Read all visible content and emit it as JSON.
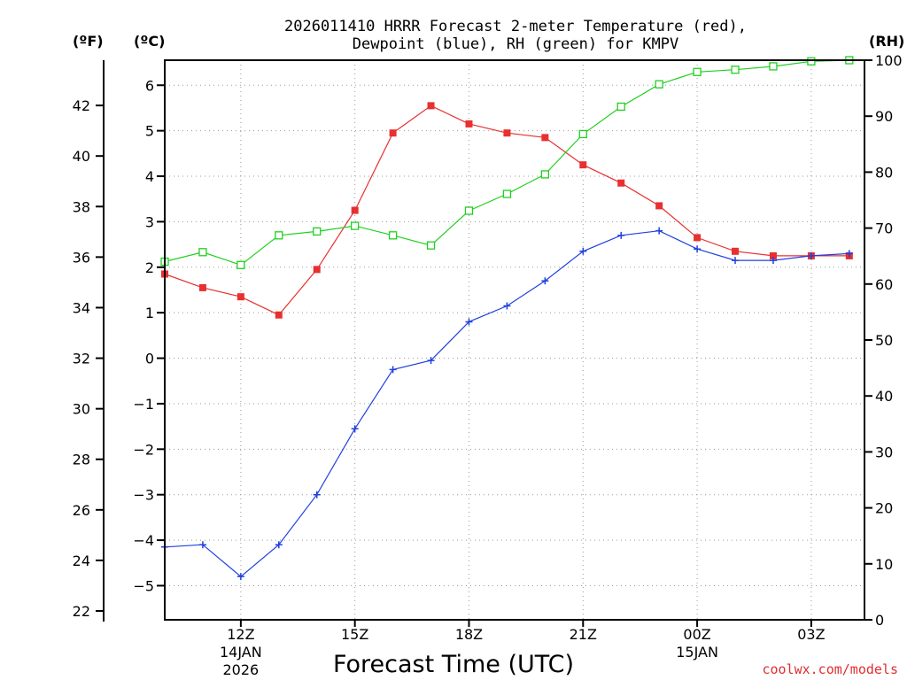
{
  "chart_data": {
    "type": "line",
    "title_line1": "2026011410 HRRR Forecast 2-meter Temperature (red),",
    "title_line2": "Dewpoint (blue), RH (green) for KMPV",
    "xlabel": "Forecast Time (UTC)",
    "credit": "coolwx.com/models",
    "units": {
      "fahrenheit": "(ºF)",
      "celsius": "(ºC)",
      "rh": "(RH)"
    },
    "x_hours": [
      10,
      11,
      12,
      13,
      14,
      15,
      16,
      17,
      18,
      19,
      20,
      21,
      22,
      23,
      24,
      25,
      26,
      27,
      28
    ],
    "xlim": [
      10,
      28.4
    ],
    "x_ticks": [
      {
        "hour": 12,
        "label": "12Z",
        "sub1": "14JAN",
        "sub2": "2026"
      },
      {
        "hour": 15,
        "label": "15Z"
      },
      {
        "hour": 18,
        "label": "18Z"
      },
      {
        "hour": 21,
        "label": "21Z"
      },
      {
        "hour": 24,
        "label": "00Z",
        "sub1": "15JAN"
      },
      {
        "hour": 27,
        "label": "03Z"
      }
    ],
    "y_celsius_ticks": [
      "6",
      "5",
      "4",
      "3",
      "2",
      "1",
      "0",
      "−1",
      "−2",
      "−3",
      "−4",
      "−5"
    ],
    "y_celsius_values": [
      6,
      5,
      4,
      3,
      2,
      1,
      0,
      -1,
      -2,
      -3,
      -4,
      -5
    ],
    "ylim_celsius": [
      -5.75,
      6.55
    ],
    "y_fahrenheit_ticks": [
      "42",
      "40",
      "38",
      "36",
      "34",
      "32",
      "30",
      "28",
      "26",
      "24",
      "22"
    ],
    "y_fahrenheit_values": [
      42,
      40,
      38,
      36,
      34,
      32,
      30,
      28,
      26,
      24,
      22
    ],
    "y_rh_ticks": [
      "100",
      "90",
      "80",
      "70",
      "60",
      "50",
      "40",
      "30",
      "20",
      "10",
      "0"
    ],
    "y_rh_values": [
      100,
      90,
      80,
      70,
      60,
      50,
      40,
      30,
      20,
      10,
      0
    ],
    "ylim_rh": [
      0,
      100
    ],
    "series": [
      {
        "name": "Temperature",
        "unit": "C",
        "color": "#e83030",
        "marker": "filled-square",
        "values": [
          1.85,
          1.55,
          1.35,
          0.95,
          1.95,
          3.25,
          4.95,
          5.55,
          5.15,
          4.95,
          4.85,
          4.25,
          3.85,
          3.35,
          2.65,
          2.35,
          2.25,
          2.25,
          2.25
        ]
      },
      {
        "name": "Dewpoint",
        "unit": "C",
        "color": "#2040e0",
        "marker": "plus",
        "values": [
          -4.15,
          -4.1,
          -4.8,
          -4.1,
          -3.0,
          -1.55,
          -0.25,
          -0.05,
          0.8,
          1.15,
          1.7,
          2.35,
          2.7,
          2.8,
          2.4,
          2.15,
          2.15,
          2.25,
          2.3
        ]
      },
      {
        "name": "RH",
        "unit": "%",
        "color": "#20d020",
        "marker": "open-square",
        "values": [
          64,
          65.7,
          63.4,
          68.7,
          69.4,
          70.4,
          68.7,
          66.9,
          73.1,
          76.1,
          79.6,
          86.8,
          91.7,
          95.7,
          97.9,
          98.3,
          98.9,
          99.8,
          100
        ]
      }
    ]
  }
}
